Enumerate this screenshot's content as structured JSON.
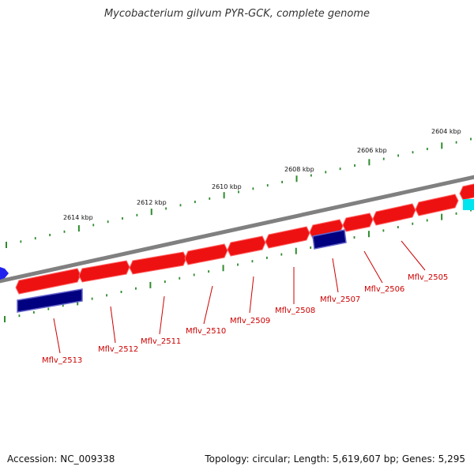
{
  "title": "Mycobacterium gilvum PYR-GCK, complete genome",
  "footer": {
    "accession": "Accession: NC_009338",
    "summary": "Topology: circular; Length: 5,619,607 bp; Genes: 5,295"
  },
  "colors": {
    "backbone": "#808080",
    "forward_gene": "#ee1111",
    "reverse_gene": "#000080",
    "other_feature_blue": "#2222ee",
    "other_feature_cyan": "#00e5ee",
    "tick": "#2e8b2e",
    "label": "#cc0000"
  },
  "kbp_labels": [
    "2604 kbp",
    "2606 kbp",
    "2608 kbp",
    "2610 kbp",
    "2612 kbp",
    "2614 kbp"
  ],
  "gene_labels": [
    "Mflv_2505",
    "Mflv_2506",
    "Mflv_2507",
    "Mflv_2508",
    "Mflv_2509",
    "Mflv_2510",
    "Mflv_2511",
    "Mflv_2512",
    "Mflv_2513"
  ]
}
